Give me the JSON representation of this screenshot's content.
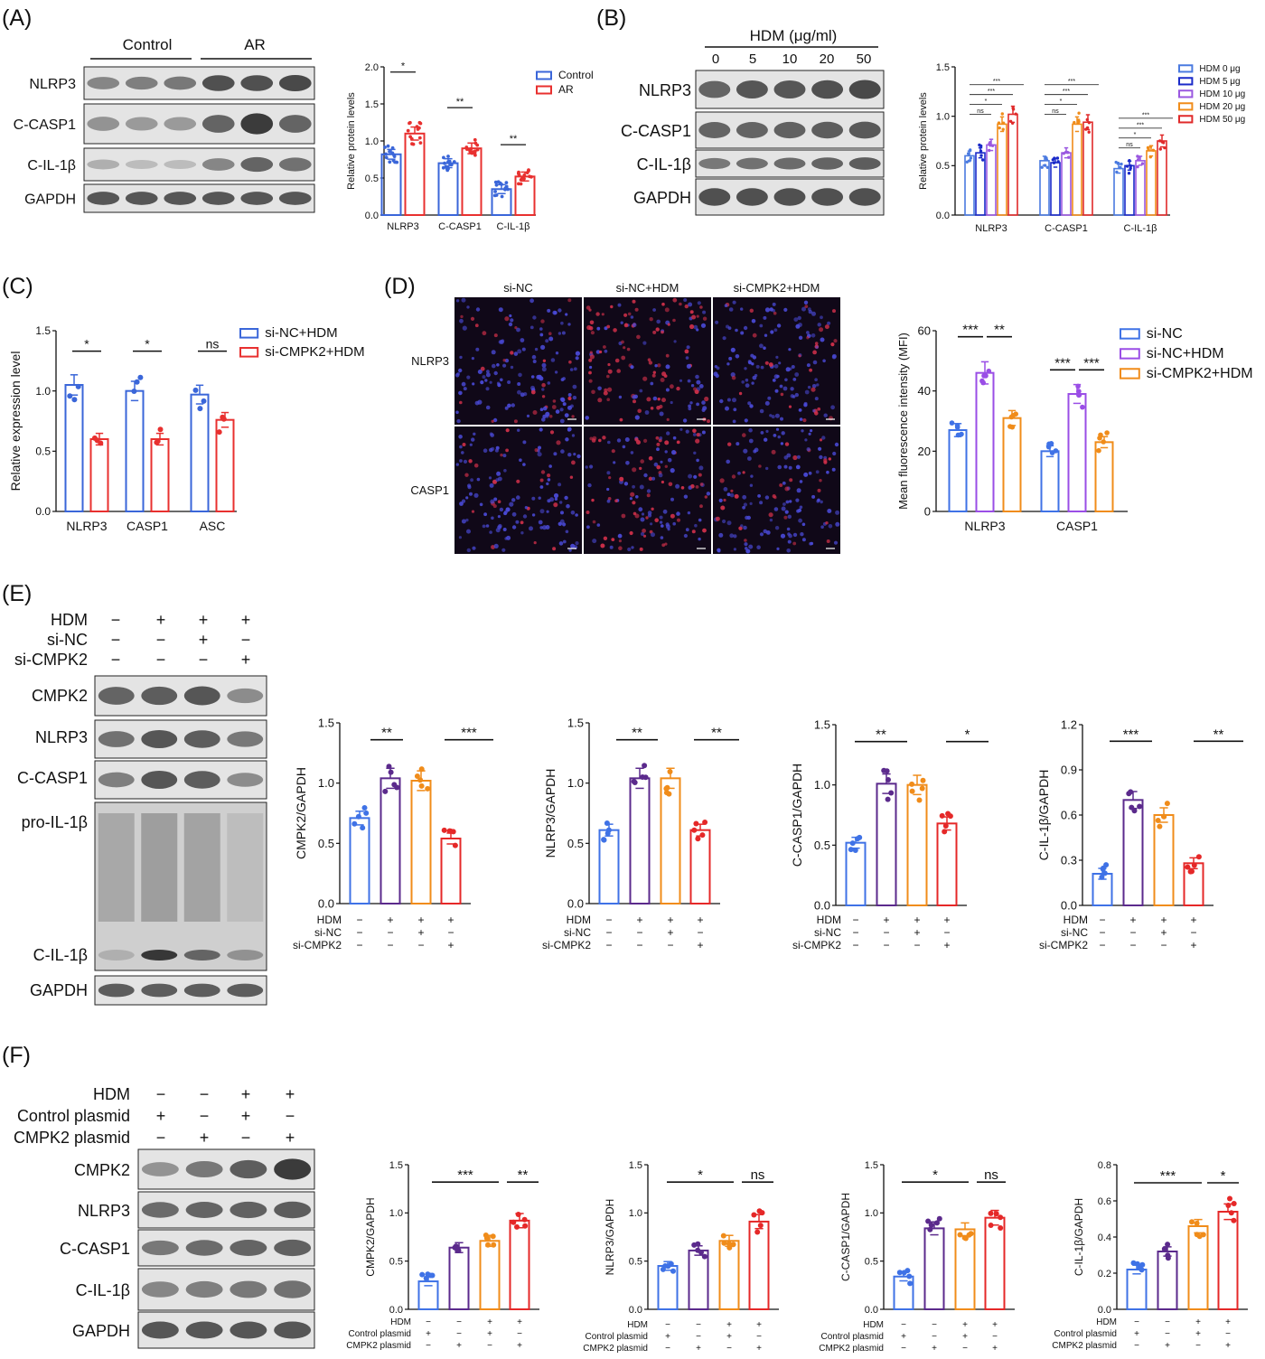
{
  "panel_letters": [
    "(A)",
    "(B)",
    "(C)",
    "(D)",
    "(E)",
    "(F)"
  ],
  "colors": {
    "control": "#3a66d9",
    "ar": "#e8302f",
    "hdm": [
      "#4a7ae0",
      "#1a2ac9",
      "#9a58e0",
      "#f08c1a",
      "#e02a2a"
    ],
    "e4": [
      "#3f72e6",
      "#5b2a8c",
      "#f08c1a",
      "#e52828"
    ],
    "d3": [
      "#3f72e6",
      "#9a4ee6",
      "#f08c1a"
    ]
  },
  "blotA": {
    "group_labels": [
      "Control",
      "AR"
    ],
    "rows": [
      "NLRP3",
      "C-CASP1",
      "C-IL-1β",
      "GAPDH"
    ]
  },
  "blotB": {
    "header": "HDM (μg/ml)",
    "doses": [
      "0",
      "5",
      "10",
      "20",
      "50"
    ],
    "rows": [
      "NLRP3",
      "C-CASP1",
      "C-IL-1β",
      "GAPDH"
    ]
  },
  "imagesD": {
    "cols": [
      "si-NC",
      "si-NC+HDM",
      "si-CMPK2+HDM"
    ],
    "rows": [
      "NLRP3",
      "CASP1"
    ]
  },
  "blotE": {
    "cond_labels": [
      "HDM",
      "si-NC",
      "si-CMPK2"
    ],
    "signs": [
      [
        "−",
        "+",
        "+",
        "+"
      ],
      [
        "−",
        "−",
        "+",
        "−"
      ],
      [
        "−",
        "−",
        "−",
        "+"
      ]
    ],
    "rows": [
      "CMPK2",
      "NLRP3",
      "C-CASP1",
      "pro-IL-1β",
      "C-IL-1β",
      "GAPDH"
    ]
  },
  "blotF": {
    "cond_labels": [
      "HDM",
      "Control plasmid",
      "CMPK2 plasmid"
    ],
    "signs": [
      [
        "−",
        "−",
        "+",
        "+"
      ],
      [
        "+",
        "−",
        "+",
        "−"
      ],
      [
        "−",
        "+",
        "−",
        "+"
      ]
    ],
    "rows": [
      "CMPK2",
      "NLRP3",
      "C-CASP1",
      "C-IL-1β",
      "GAPDH"
    ]
  },
  "chart_data": [
    {
      "id": "A",
      "type": "bar",
      "ylabel": "Relative protein levels",
      "ylim": [
        0,
        2.0
      ],
      "yticks": [
        "0.0",
        "0.5",
        "1.0",
        "1.5",
        "2.0"
      ],
      "categories": [
        "NLRP3",
        "C-CASP1",
        "C-IL-1β"
      ],
      "series": [
        {
          "name": "Control",
          "values": [
            0.82,
            0.7,
            0.35
          ]
        },
        {
          "name": "AR",
          "values": [
            1.1,
            0.9,
            0.52
          ]
        }
      ],
      "sig": [
        "*",
        "**",
        "**"
      ],
      "legend_position": "right"
    },
    {
      "id": "B",
      "type": "bar",
      "ylabel": "Relative protein levels",
      "ylim": [
        0,
        1.5
      ],
      "yticks": [
        "0.0",
        "0.5",
        "1.0",
        "1.5"
      ],
      "categories": [
        "NLRP3",
        "C-CASP1",
        "C-IL-1β"
      ],
      "series": [
        {
          "name": "HDM 0 μg",
          "values": [
            0.6,
            0.55,
            0.47
          ]
        },
        {
          "name": "HDM 5 μg",
          "values": [
            0.63,
            0.53,
            0.5
          ]
        },
        {
          "name": "HDM 10 μg",
          "values": [
            0.71,
            0.63,
            0.55
          ]
        },
        {
          "name": "HDM 20 μg",
          "values": [
            0.92,
            0.92,
            0.65
          ]
        },
        {
          "name": "HDM 50 μg",
          "values": [
            1.02,
            0.94,
            0.75
          ]
        }
      ],
      "sig": [
        [
          "ns",
          "*",
          "***",
          "***"
        ],
        [
          "ns",
          "*",
          "***",
          "***"
        ],
        [
          "ns",
          "*",
          "***",
          "***"
        ]
      ],
      "legend_position": "right"
    },
    {
      "id": "C",
      "type": "bar",
      "ylabel": "Relative expression level",
      "ylim": [
        0,
        1.5
      ],
      "yticks": [
        "0.0",
        "0.5",
        "1.0",
        "1.5"
      ],
      "categories": [
        "NLRP3",
        "CASP1",
        "ASC"
      ],
      "series": [
        {
          "name": "si-NC+HDM",
          "values": [
            1.05,
            1.0,
            0.97
          ]
        },
        {
          "name": "si-CMPK2+HDM",
          "values": [
            0.6,
            0.6,
            0.76
          ]
        }
      ],
      "sig": [
        "*",
        "*",
        "ns"
      ],
      "legend_position": "right"
    },
    {
      "id": "D",
      "type": "bar",
      "ylabel": "Mean fluorescence intensity (MFI)",
      "ylim": [
        0,
        60
      ],
      "yticks": [
        "0",
        "20",
        "40",
        "60"
      ],
      "categories": [
        "NLRP3",
        "CASP1"
      ],
      "series": [
        {
          "name": "si-NC",
          "values": [
            27,
            20
          ]
        },
        {
          "name": "si-NC+HDM",
          "values": [
            46,
            39
          ]
        },
        {
          "name": "si-CMPK2+HDM",
          "values": [
            31,
            23
          ]
        }
      ],
      "sig": [
        [
          "***",
          "**"
        ],
        [
          "***",
          "***"
        ]
      ],
      "legend_position": "right"
    },
    {
      "id": "E1",
      "type": "bar",
      "ylabel": "CMPK2/GAPDH",
      "ylim": [
        0,
        1.5
      ],
      "yticks": [
        "0.0",
        "0.5",
        "1.0",
        "1.5"
      ],
      "values": [
        0.71,
        1.04,
        1.02,
        0.54
      ],
      "sig": [
        "**",
        "***"
      ]
    },
    {
      "id": "E2",
      "type": "bar",
      "ylabel": "NLRP3/GAPDH",
      "ylim": [
        0,
        1.5
      ],
      "yticks": [
        "0.0",
        "0.5",
        "1.0",
        "1.5"
      ],
      "values": [
        0.61,
        1.04,
        1.04,
        0.61
      ],
      "sig": [
        "**",
        "**"
      ]
    },
    {
      "id": "E3",
      "type": "bar",
      "ylabel": "C-CASP1/GAPDH",
      "ylim": [
        0,
        1.5
      ],
      "yticks": [
        "0.0",
        "0.5",
        "1.0",
        "1.5"
      ],
      "values": [
        0.52,
        1.01,
        1.0,
        0.68
      ],
      "sig": [
        "**",
        "*"
      ]
    },
    {
      "id": "E4",
      "type": "bar",
      "ylabel": "C-IL-1β/GAPDH",
      "ylim": [
        0,
        1.2
      ],
      "yticks": [
        "0.0",
        "0.3",
        "0.6",
        "0.9",
        "1.2"
      ],
      "values": [
        0.21,
        0.7,
        0.6,
        0.28
      ],
      "sig": [
        "***",
        "**"
      ]
    },
    {
      "id": "F1",
      "type": "bar",
      "ylabel": "CMPK2/GAPDH",
      "ylim": [
        0,
        1.5
      ],
      "yticks": [
        "0.0",
        "0.5",
        "1.0",
        "1.5"
      ],
      "values": [
        0.29,
        0.64,
        0.71,
        0.92
      ],
      "sig": [
        "***",
        "**"
      ]
    },
    {
      "id": "F2",
      "type": "bar",
      "ylabel": "NLRP3/GAPDH",
      "ylim": [
        0,
        1.5
      ],
      "yticks": [
        "0.0",
        "0.5",
        "1.0",
        "1.5"
      ],
      "values": [
        0.45,
        0.61,
        0.71,
        0.91
      ],
      "sig": [
        "*",
        "ns"
      ]
    },
    {
      "id": "F3",
      "type": "bar",
      "ylabel": "C-CASP1/GAPDH",
      "ylim": [
        0,
        1.5
      ],
      "yticks": [
        "0.0",
        "0.5",
        "1.0",
        "1.5"
      ],
      "values": [
        0.34,
        0.84,
        0.83,
        0.95
      ],
      "sig": [
        "*",
        "ns"
      ]
    },
    {
      "id": "F4",
      "type": "bar",
      "ylabel": "C-IL-1β/GAPDH",
      "ylim": [
        0,
        0.8
      ],
      "yticks": [
        "0.0",
        "0.2",
        "0.4",
        "0.6",
        "0.8"
      ],
      "values": [
        0.22,
        0.32,
        0.46,
        0.54
      ],
      "sig": [
        "***",
        "*"
      ]
    }
  ]
}
